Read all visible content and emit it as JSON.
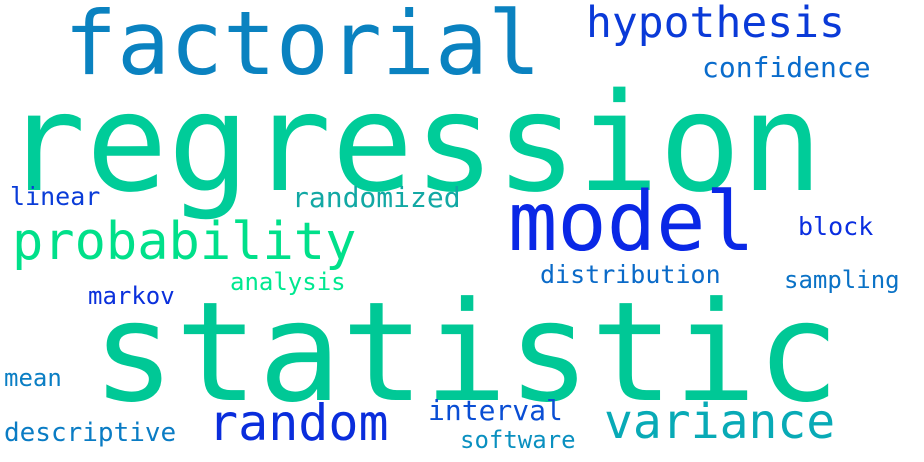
{
  "words": [
    {
      "text": "regression",
      "color": "#00cc99"
    },
    {
      "text": "statistic",
      "color": "#00c896"
    },
    {
      "text": "factorial",
      "color": "#0a82c0"
    },
    {
      "text": "model",
      "color": "#0a28e6"
    },
    {
      "text": "probability",
      "color": "#00e08a"
    },
    {
      "text": "hypothesis",
      "color": "#0a3ad8"
    },
    {
      "text": "random",
      "color": "#0a2ddc"
    },
    {
      "text": "variance",
      "color": "#08aab6"
    },
    {
      "text": "confidence",
      "color": "#0a6ccc"
    },
    {
      "text": "randomized",
      "color": "#12a8a4"
    },
    {
      "text": "interval",
      "color": "#0a4ed4"
    },
    {
      "text": "distribution",
      "color": "#0a6ac8"
    },
    {
      "text": "analysis",
      "color": "#00e890"
    },
    {
      "text": "linear",
      "color": "#0a3cd8"
    },
    {
      "text": "block",
      "color": "#0a2ee0"
    },
    {
      "text": "sampling",
      "color": "#0a72c6"
    },
    {
      "text": "markov",
      "color": "#0a30dc"
    },
    {
      "text": "mean",
      "color": "#0a7ec4"
    },
    {
      "text": "descriptive",
      "color": "#0a7cc4"
    },
    {
      "text": "software",
      "color": "#0a90c0"
    }
  ]
}
